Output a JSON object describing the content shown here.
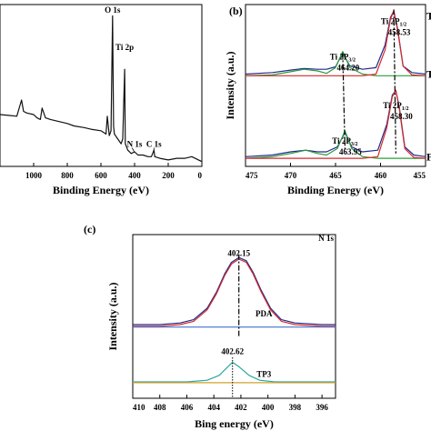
{
  "chart_data": [
    {
      "type": "line",
      "panel": "a",
      "title": "",
      "xlabel": "Binding Energy (eV)",
      "ylabel": "",
      "xlim": [
        1200,
        0
      ],
      "xticks": [
        "1000",
        "800",
        "600",
        "400",
        "200",
        "0"
      ],
      "xtick_values": [
        1000,
        800,
        600,
        400,
        200,
        0
      ],
      "annotations": [
        {
          "text": "O 1s",
          "x": 531,
          "y": 0.95
        },
        {
          "text": "Ti 2p",
          "x": 459,
          "y": 0.72
        },
        {
          "text": "N 1s",
          "x": 400,
          "y": 0.12
        },
        {
          "text": "C 1s",
          "x": 285,
          "y": 0.12
        }
      ],
      "series": [
        {
          "color": "#111111",
          "x": [
            1200,
            1150,
            1100,
            1072,
            1060,
            1040,
            1000,
            980,
            960,
            950,
            930,
            900,
            860,
            800,
            760,
            700,
            660,
            600,
            570,
            562,
            550,
            540,
            531,
            525,
            520,
            480,
            470,
            459,
            455,
            440,
            420,
            400,
            380,
            350,
            320,
            300,
            285,
            280,
            250,
            200,
            150,
            100,
            60,
            40,
            20,
            0
          ],
          "y": [
            0.32,
            0.315,
            0.31,
            0.41,
            0.34,
            0.33,
            0.32,
            0.3,
            0.29,
            0.36,
            0.3,
            0.29,
            0.28,
            0.265,
            0.25,
            0.24,
            0.23,
            0.22,
            0.2,
            0.31,
            0.19,
            0.22,
            0.93,
            0.25,
            0.2,
            0.14,
            0.17,
            0.6,
            0.14,
            0.1,
            0.08,
            0.09,
            0.07,
            0.07,
            0.06,
            0.06,
            0.1,
            0.06,
            0.05,
            0.04,
            0.05,
            0.05,
            0.06,
            0.05,
            0.04,
            0.03
          ]
        }
      ]
    },
    {
      "type": "line",
      "panel": "b",
      "title": "",
      "xlabel": "Binding Energy (eV)",
      "ylabel": "Intensity (a.u.)",
      "xlim": [
        475,
        455
      ],
      "xticks": [
        "475",
        "470",
        "465",
        "460",
        "455"
      ],
      "xtick_values": [
        475,
        470,
        465,
        460,
        455
      ],
      "annotations": [
        {
          "text": "Ti 2P",
          "sub": "1/2",
          "x": 458.53,
          "value": "458.53",
          "y": 0.88
        },
        {
          "text": "Ti 2P",
          "sub": "3/2",
          "x": 464.2,
          "value": "464.20",
          "y": 0.66
        },
        {
          "text": "Ti 2P",
          "sub": "1/2",
          "x": 458.3,
          "value": "458.30",
          "y": 0.36
        },
        {
          "text": "Ti 2P",
          "sub": "3/2",
          "x": 463.95,
          "value": "463.95",
          "y": 0.14
        }
      ],
      "right_labels": [
        "T",
        "T",
        "F"
      ],
      "series": [
        {
          "color": "#1f2a8a",
          "x": [
            475,
            472,
            470,
            468.5,
            467,
            466,
            465,
            464.2,
            463.4,
            462,
            460.5,
            459.5,
            458.9,
            458.53,
            458.1,
            457.5,
            456.5,
            455
          ],
          "y": [
            0.57,
            0.58,
            0.595,
            0.605,
            0.6,
            0.6,
            0.615,
            0.7,
            0.62,
            0.6,
            0.61,
            0.75,
            0.92,
            0.96,
            0.85,
            0.62,
            0.58,
            0.57
          ]
        },
        {
          "color": "#2a9d3a",
          "x": [
            475,
            472,
            470,
            468.5,
            467,
            466,
            465,
            464.2,
            463.4,
            462,
            460.5,
            459.5,
            458.9,
            458.53,
            458.1,
            457.5,
            456.5,
            455
          ],
          "y": [
            0.56,
            0.565,
            0.585,
            0.6,
            0.59,
            0.575,
            0.61,
            0.71,
            0.61,
            0.57,
            0.56,
            0.56,
            0.56,
            0.56,
            0.56,
            0.56,
            0.56,
            0.56
          ]
        },
        {
          "color": "#d42a2a",
          "x": [
            475,
            462,
            460.5,
            459.5,
            458.9,
            458.53,
            458.1,
            457.5,
            456.5,
            455
          ],
          "y": [
            0.56,
            0.56,
            0.57,
            0.72,
            0.91,
            0.96,
            0.84,
            0.62,
            0.565,
            0.56
          ]
        },
        {
          "color": "#1f2a8a",
          "x": [
            475,
            472,
            470,
            468.3,
            467,
            466,
            464.8,
            463.95,
            463.2,
            462,
            460.3,
            459.3,
            458.7,
            458.3,
            457.9,
            457.3,
            456.3,
            455
          ],
          "y": [
            0.06,
            0.07,
            0.09,
            0.1,
            0.09,
            0.09,
            0.12,
            0.21,
            0.12,
            0.09,
            0.1,
            0.26,
            0.44,
            0.47,
            0.36,
            0.12,
            0.07,
            0.06
          ]
        },
        {
          "color": "#2a9d3a",
          "x": [
            475,
            472,
            470,
            468.3,
            467,
            466,
            464.8,
            463.95,
            463.2,
            462,
            460.3,
            459.3,
            458.7,
            458.3,
            457.9,
            457.3,
            456.3,
            455
          ],
          "y": [
            0.05,
            0.06,
            0.08,
            0.1,
            0.08,
            0.07,
            0.11,
            0.22,
            0.11,
            0.06,
            0.05,
            0.05,
            0.05,
            0.05,
            0.05,
            0.05,
            0.05,
            0.05
          ]
        },
        {
          "color": "#d42a2a",
          "x": [
            475,
            462,
            460.3,
            459.3,
            458.7,
            458.3,
            457.9,
            457.3,
            456.3,
            455
          ],
          "y": [
            0.05,
            0.05,
            0.06,
            0.24,
            0.43,
            0.47,
            0.35,
            0.11,
            0.055,
            0.05
          ]
        }
      ]
    },
    {
      "type": "line",
      "panel": "c",
      "title": "",
      "xlabel": "Bing energy (eV)",
      "ylabel": "Intensity (a.u.)",
      "xlim": [
        410,
        395
      ],
      "xticks": [
        "410",
        "408",
        "406",
        "404",
        "402",
        "400",
        "398",
        "396"
      ],
      "xtick_values": [
        410,
        408,
        406,
        404,
        402,
        400,
        398,
        396
      ],
      "annotations": [
        {
          "text": "N 1s",
          "x": 395.7,
          "y": 0.96
        },
        {
          "text": "402.15",
          "x": 402.15,
          "y": 0.87
        },
        {
          "text": "PDA",
          "x": 400.3,
          "y": 0.5
        },
        {
          "text": "402.62",
          "x": 402.62,
          "y": 0.27
        },
        {
          "text": "TP3",
          "x": 400.3,
          "y": 0.13
        }
      ],
      "series": [
        {
          "name": "PDA",
          "color": "#1f2a8a",
          "x": [
            410,
            408,
            406.5,
            405.5,
            404.5,
            403.8,
            403.2,
            402.7,
            402.15,
            401.6,
            401.1,
            400.5,
            399.8,
            399,
            398,
            396,
            395
          ],
          "y": [
            0.45,
            0.45,
            0.46,
            0.48,
            0.55,
            0.65,
            0.76,
            0.83,
            0.86,
            0.84,
            0.77,
            0.66,
            0.55,
            0.48,
            0.46,
            0.45,
            0.45
          ]
        },
        {
          "name": "",
          "color": "#d42a2a",
          "x": [
            410,
            408,
            406.5,
            405.5,
            404.5,
            403.8,
            403.2,
            402.7,
            402.15,
            401.6,
            401.1,
            400.5,
            399.8,
            399,
            398,
            396,
            395
          ],
          "y": [
            0.44,
            0.44,
            0.45,
            0.47,
            0.54,
            0.64,
            0.75,
            0.82,
            0.85,
            0.83,
            0.76,
            0.65,
            0.54,
            0.47,
            0.45,
            0.44,
            0.44
          ]
        },
        {
          "name": "",
          "color": "#3f6fd4",
          "x": [
            410,
            395
          ],
          "y": [
            0.435,
            0.435
          ]
        },
        {
          "name": "TP3",
          "color": "#2aa7a0",
          "x": [
            410,
            406,
            404.5,
            403.6,
            403,
            402.62,
            402.1,
            401.4,
            400.6,
            399.5,
            398,
            395
          ],
          "y": [
            0.1,
            0.1,
            0.11,
            0.14,
            0.19,
            0.22,
            0.19,
            0.14,
            0.11,
            0.1,
            0.1,
            0.1
          ]
        },
        {
          "name": "",
          "color": "#d4a12a",
          "x": [
            410,
            395
          ],
          "y": [
            0.095,
            0.095
          ]
        }
      ]
    }
  ],
  "panel_labels": {
    "b": "(b)",
    "c": "(c)"
  }
}
